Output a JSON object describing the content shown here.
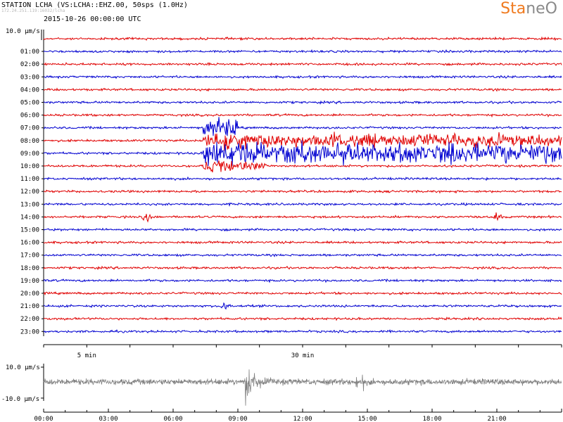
{
  "header": {
    "station_line": "STATION LCHA (VS:LCHA::EHZ.00, 50sps (1.0Hz)",
    "faint_line": "172.24.251.119:16032/lcha",
    "date_line": "2015-10-26 00:00:00 UTC"
  },
  "logo": {
    "part1": "Sta",
    "part2": "neO",
    "color1": "#f07a1e",
    "color2": "#8a8a8a"
  },
  "chart_data": [
    {
      "type": "line",
      "title": "",
      "scale_label": "10.0 µm/s",
      "row_labels": [
        "01:00",
        "02:00",
        "03:00",
        "04:00",
        "05:00",
        "06:00",
        "07:00",
        "08:00",
        "09:00",
        "10:00",
        "11:00",
        "12:00",
        "13:00",
        "14:00",
        "15:00",
        "16:00",
        "17:00",
        "18:00",
        "19:00",
        "20:00",
        "21:00",
        "22:00",
        "23:00"
      ],
      "minute_ticks": [
        {
          "label": "5 min",
          "minute": 5
        },
        {
          "label": "30 min",
          "minute": 30
        }
      ],
      "x_range_minutes": [
        0,
        60
      ],
      "colors": [
        "#e00000",
        "#0000d0"
      ],
      "events": [
        {
          "row_label": "07:00",
          "minute_start": 18.5,
          "minute_end": 22.5,
          "amplitude": "high"
        },
        {
          "row_label": "08:00",
          "minute_start": 18.5,
          "minute_end": 60,
          "amplitude": "high"
        },
        {
          "row_label": "09:00",
          "minute_start": 18.5,
          "minute_end": 60,
          "amplitude": "very high"
        },
        {
          "row_label": "10:00",
          "minute_start": 18.5,
          "minute_end": 26,
          "amplitude": "medium"
        },
        {
          "row_label": "14:00",
          "minute": 12,
          "amplitude": "spike"
        },
        {
          "row_label": "14:00",
          "minute": 52.5,
          "amplitude": "spike"
        },
        {
          "row_label": "21:00",
          "minute": 21,
          "amplitude": "spike"
        }
      ]
    },
    {
      "type": "line",
      "title": "",
      "y_labels": [
        "10.0 µm/s",
        "-10.0 µm/s"
      ],
      "x_tick_labels": [
        "00:00",
        "03:00",
        "06:00",
        "09:00",
        "12:00",
        "15:00",
        "18:00",
        "21:00"
      ],
      "x_range_hours": [
        0,
        24
      ],
      "line_color": "#808080",
      "events": [
        {
          "hour": 9.3,
          "amplitude": "very high"
        },
        {
          "hour": 14.5,
          "amplitude": "spike"
        },
        {
          "hour": 14.8,
          "amplitude": "spike"
        }
      ]
    }
  ]
}
